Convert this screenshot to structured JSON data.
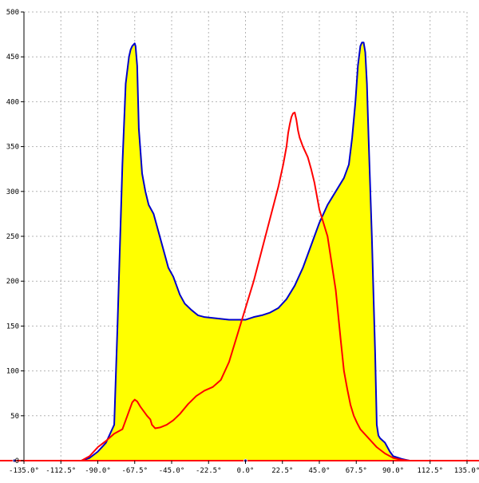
{
  "chart_data": {
    "type": "area",
    "title": "",
    "xlabel": "",
    "ylabel": "",
    "xlim": [
      -135,
      135
    ],
    "ylim": [
      0,
      500
    ],
    "grid": true,
    "x_ticks": [
      -135,
      -112.5,
      -90,
      -67.5,
      -45,
      -22.5,
      0,
      22.5,
      45,
      67.5,
      90,
      112.5,
      135
    ],
    "x_tick_labels": [
      "-135.0°",
      "-112.5°",
      "-90.0°",
      "-67.5°",
      "-45.0°",
      "-22.5°",
      "0.0°",
      "22.5°",
      "45.0°",
      "67.5°",
      "90.0°",
      "112.5°",
      "135.0°"
    ],
    "y_ticks": [
      0,
      50,
      100,
      150,
      200,
      250,
      300,
      350,
      400,
      450,
      500
    ],
    "y_tick_labels": [
      "0",
      "50",
      "100",
      "150",
      "200",
      "250",
      "300",
      "350",
      "400",
      "450",
      "500"
    ],
    "colors": {
      "fill": "#ffff00",
      "blue_line": "#0000cc",
      "red_line": "#ff0000",
      "grid": "#b4b4b4",
      "axis": "#000000",
      "baseline": "#ff0000"
    },
    "series": [
      {
        "color": "blue",
        "filled": true,
        "x": [
          -100,
          -95,
          -90,
          -85,
          -80,
          -78,
          -75,
          -73,
          -71,
          -70,
          -69,
          -68,
          -67.5,
          -67,
          -66,
          -65,
          -63,
          -61,
          -59,
          -56,
          -53,
          -50,
          -47,
          -44,
          -40,
          -37,
          -33,
          -29,
          -25,
          -20,
          -15,
          -10,
          -5,
          0,
          5,
          10,
          15,
          20,
          25,
          30,
          35,
          40,
          45,
          50,
          55,
          60,
          63,
          65,
          67,
          68.5,
          70,
          71,
          72,
          73,
          74,
          75,
          77,
          79,
          80,
          81,
          82,
          85,
          88,
          90,
          95,
          100
        ],
        "y": [
          0,
          3,
          10,
          20,
          40,
          150,
          330,
          420,
          450,
          458,
          462,
          464,
          465,
          462,
          440,
          370,
          320,
          300,
          285,
          275,
          255,
          235,
          215,
          205,
          185,
          175,
          168,
          162,
          160,
          159,
          158,
          157,
          157,
          157,
          160,
          162,
          165,
          170,
          180,
          195,
          215,
          240,
          265,
          285,
          300,
          315,
          330,
          360,
          400,
          440,
          462,
          466,
          466,
          455,
          420,
          360,
          250,
          120,
          40,
          28,
          25,
          20,
          10,
          5,
          2,
          0
        ]
      },
      {
        "color": "red",
        "filled": false,
        "x": [
          -100,
          -95,
          -90,
          -85,
          -80,
          -75,
          -73,
          -71,
          -69,
          -67.5,
          -66,
          -64,
          -62,
          -60,
          -58,
          -57,
          -56,
          -55,
          -52,
          -48,
          -44,
          -40,
          -35,
          -30,
          -25,
          -20,
          -15,
          -10,
          -5,
          0,
          5,
          10,
          15,
          20,
          23,
          25,
          26,
          27,
          28,
          29,
          30,
          31,
          32,
          33,
          34,
          35,
          36,
          38,
          40,
          42,
          45,
          50,
          55,
          58,
          60,
          62,
          64,
          66,
          68,
          70,
          75,
          80,
          85,
          90,
          95,
          100
        ],
        "y": [
          0,
          5,
          15,
          22,
          30,
          35,
          45,
          55,
          65,
          68,
          66,
          60,
          55,
          50,
          46,
          40,
          38,
          36,
          37,
          40,
          45,
          52,
          63,
          72,
          78,
          82,
          90,
          110,
          140,
          170,
          200,
          235,
          270,
          305,
          330,
          350,
          365,
          375,
          383,
          387,
          388,
          380,
          368,
          360,
          355,
          350,
          346,
          338,
          325,
          310,
          280,
          250,
          190,
          135,
          100,
          80,
          62,
          50,
          42,
          35,
          25,
          15,
          8,
          3,
          1,
          0
        ]
      }
    ]
  }
}
